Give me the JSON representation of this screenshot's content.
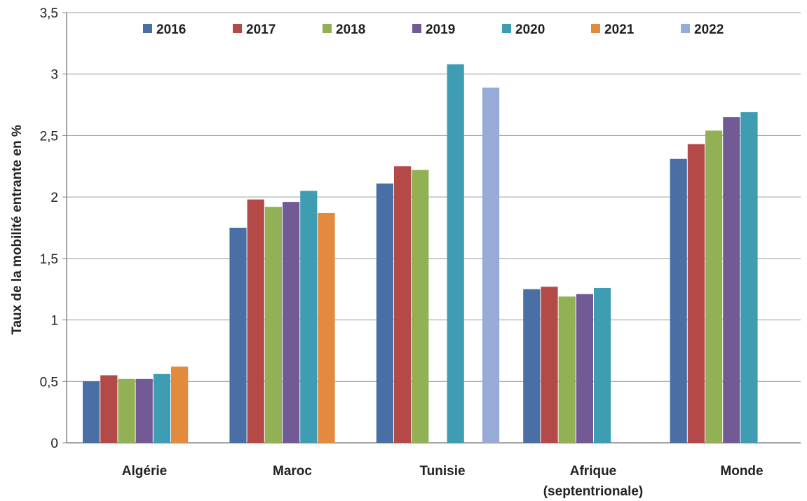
{
  "chart_data": {
    "type": "bar",
    "title": "",
    "xlabel": "",
    "ylabel": "Taux de la mobilité entrante en %",
    "ylim": [
      0,
      3.5
    ],
    "yticks": [
      0,
      0.5,
      1,
      1.5,
      2,
      2.5,
      3,
      3.5
    ],
    "ytick_labels": [
      "0",
      "0,5",
      "1",
      "1,5",
      "2",
      "2,5",
      "3",
      "3,5"
    ],
    "grid": "horizontal",
    "legend_position": "top",
    "categories": [
      [
        "Algérie"
      ],
      [
        "Maroc"
      ],
      [
        "Tunisie"
      ],
      [
        "Afrique",
        "(septentrionale)"
      ],
      [
        "Monde"
      ]
    ],
    "series": [
      {
        "name": "2016",
        "color": "#4a6fa5",
        "values": [
          0.5,
          1.75,
          2.11,
          1.25,
          2.31
        ]
      },
      {
        "name": "2017",
        "color": "#b34a48",
        "values": [
          0.55,
          1.98,
          2.25,
          1.27,
          2.43
        ]
      },
      {
        "name": "2018",
        "color": "#92b054",
        "values": [
          0.52,
          1.92,
          2.22,
          1.19,
          2.54
        ]
      },
      {
        "name": "2019",
        "color": "#725b95",
        "values": [
          0.52,
          1.96,
          null,
          1.21,
          2.65
        ]
      },
      {
        "name": "2020",
        "color": "#3e9db3",
        "values": [
          0.56,
          2.05,
          3.08,
          1.26,
          2.69
        ]
      },
      {
        "name": "2021",
        "color": "#e38a3f",
        "values": [
          0.62,
          1.87,
          null,
          null,
          null
        ]
      },
      {
        "name": "2022",
        "color": "#98abd6",
        "values": [
          null,
          null,
          2.89,
          null,
          null
        ]
      }
    ]
  }
}
